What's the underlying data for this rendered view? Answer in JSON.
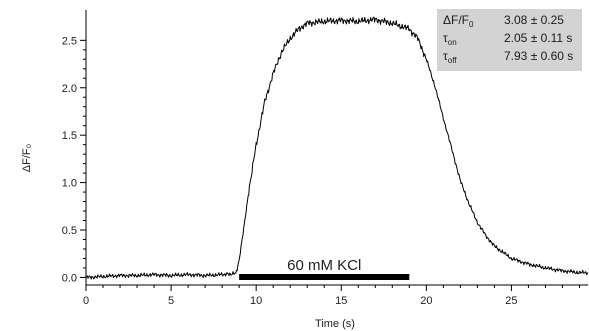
{
  "chart_data": {
    "type": "line",
    "xlabel": "Time (s)",
    "ylabel": "ΔF/F₀",
    "xlim": [
      0,
      29.5
    ],
    "ylim": [
      -0.08,
      2.82
    ],
    "xticks": [
      0,
      5,
      10,
      15,
      20,
      25
    ],
    "yticks": [
      0.0,
      0.5,
      1.0,
      1.5,
      2.0,
      2.5
    ],
    "xtick_labels": [
      "0",
      "5",
      "10",
      "15",
      "20",
      "25"
    ],
    "ytick_labels": [
      "0.0",
      "0.5",
      "1.0",
      "1.5",
      "2.0",
      "2.5"
    ],
    "grid": false,
    "series": [
      {
        "x": [
          0,
          1,
          2,
          3,
          4,
          5,
          6,
          7,
          8,
          8.8,
          9.0,
          9.3,
          9.6,
          10.0,
          10.5,
          11.0,
          11.5,
          12.0,
          12.5,
          13.0,
          14.0,
          15.0,
          16.0,
          17.0,
          18.0,
          19.0,
          19.5,
          20.0,
          20.5,
          21.0,
          21.5,
          22.0,
          22.5,
          23.0,
          23.5,
          24.0,
          25.0,
          26.0,
          27.0,
          28.0,
          29.0,
          29.5
        ],
        "values": [
          0.0,
          0.01,
          0.02,
          0.02,
          0.03,
          0.02,
          0.03,
          0.02,
          0.03,
          0.04,
          0.18,
          0.55,
          0.95,
          1.4,
          1.85,
          2.15,
          2.38,
          2.52,
          2.62,
          2.68,
          2.7,
          2.71,
          2.7,
          2.72,
          2.68,
          2.62,
          2.52,
          2.3,
          2.02,
          1.68,
          1.35,
          1.02,
          0.78,
          0.58,
          0.44,
          0.33,
          0.2,
          0.14,
          0.1,
          0.07,
          0.05,
          0.05
        ]
      }
    ],
    "stimulus": {
      "label": "60 mM KCl",
      "start": 9.0,
      "end": 19.0
    },
    "annotations": [
      {
        "symbol": "ΔF/F",
        "sub": "0",
        "value": "3.08 ± 0.25"
      },
      {
        "symbol": "τ",
        "sub": "on",
        "value": "2.05 ± 0.11 s"
      },
      {
        "symbol": "τ",
        "sub": "off",
        "value": "7.93 ± 0.60 s"
      }
    ]
  }
}
